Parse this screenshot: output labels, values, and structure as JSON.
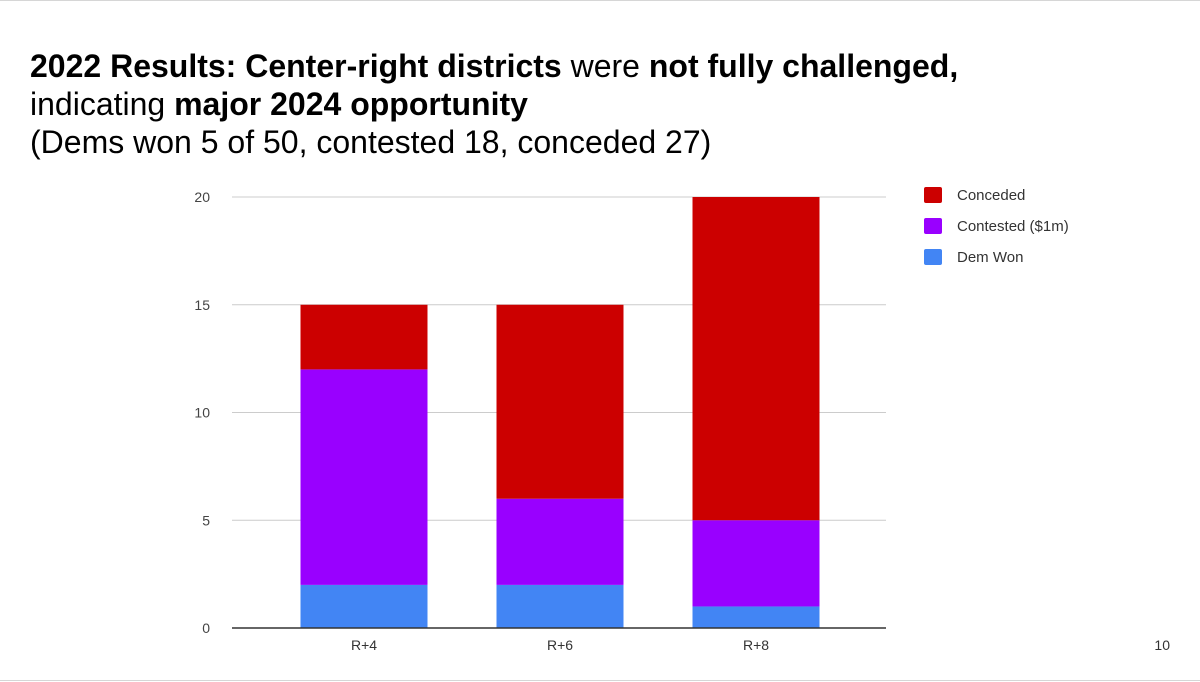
{
  "slide": {
    "title_parts": [
      {
        "text": "2022 Results: Center-right districts",
        "bold": true
      },
      {
        "text": " were ",
        "bold": false
      },
      {
        "text": "not fully challenged,",
        "bold": true
      }
    ],
    "title_line2_parts": [
      {
        "text": "indicating ",
        "bold": false
      },
      {
        "text": "major 2024 opportunity",
        "bold": true
      }
    ],
    "subtitle": "(Dems won 5 of 50, contested 18, conceded 27)",
    "page_number": "10"
  },
  "chart_data": {
    "type": "bar",
    "stacked": true,
    "categories": [
      "R+4",
      "R+6",
      "R+8"
    ],
    "series": [
      {
        "name": "Dem Won",
        "values": [
          2,
          2,
          1
        ],
        "color": "#4285f4"
      },
      {
        "name": "Contested ($1m)",
        "values": [
          10,
          4,
          4
        ],
        "color": "#9900ff"
      },
      {
        "name": "Conceded",
        "values": [
          3,
          9,
          15
        ],
        "color": "#cc0000"
      }
    ],
    "legend_order": [
      "Conceded",
      "Contested ($1m)",
      "Dem Won"
    ],
    "legend_position": "right",
    "ylim": [
      0,
      20
    ],
    "yticks": [
      0,
      5,
      10,
      15,
      20
    ],
    "grid": true,
    "title": "",
    "xlabel": "",
    "ylabel": ""
  }
}
